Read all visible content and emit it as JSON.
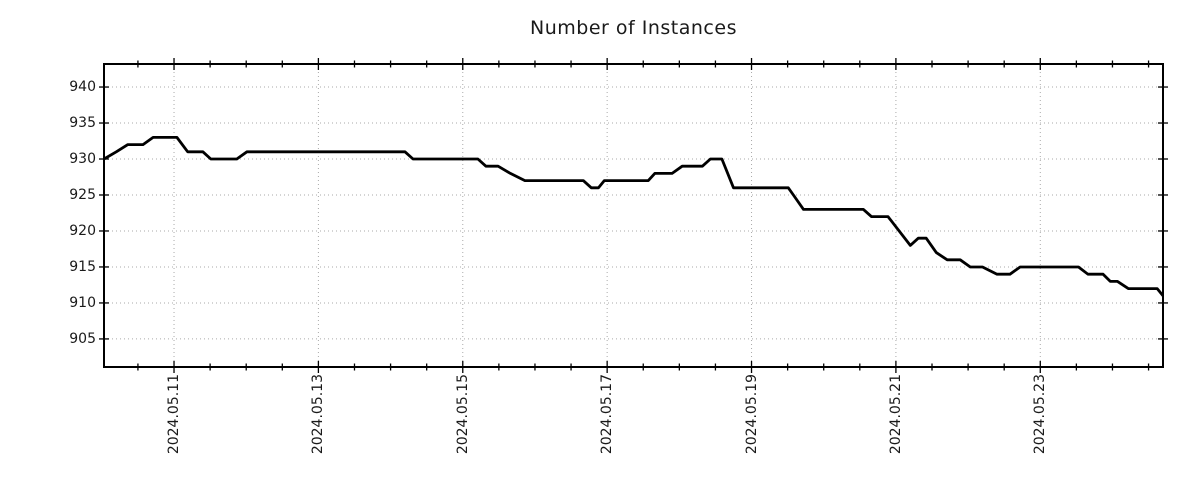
{
  "chart_data": {
    "type": "line",
    "title": "Number of Instances",
    "xlabel": "",
    "ylabel": "",
    "x_unit": "day of month (May 2024)",
    "xlim": [
      10.03,
      24.7
    ],
    "ylim": [
      901.1,
      943.2
    ],
    "grid": "dotted gray at major ticks, horizontal and vertical",
    "legend_position": "none",
    "yticks": [
      {
        "v": 905,
        "label": "905"
      },
      {
        "v": 910,
        "label": "910"
      },
      {
        "v": 915,
        "label": "915"
      },
      {
        "v": 920,
        "label": "920"
      },
      {
        "v": 925,
        "label": "925"
      },
      {
        "v": 930,
        "label": "930"
      },
      {
        "v": 935,
        "label": "935"
      },
      {
        "v": 940,
        "label": "940"
      }
    ],
    "xticks_major": [
      {
        "v": 11,
        "label": "2024.05.11"
      },
      {
        "v": 13,
        "label": "2024.05.13"
      },
      {
        "v": 15,
        "label": "2024.05.15"
      },
      {
        "v": 17,
        "label": "2024.05.17"
      },
      {
        "v": 19,
        "label": "2024.05.19"
      },
      {
        "v": 21,
        "label": "2024.05.21"
      },
      {
        "v": 23,
        "label": "2024.05.23"
      }
    ],
    "xticks_minor": [
      10.5,
      11.5,
      12,
      12.5,
      13.5,
      14,
      14.5,
      15.5,
      16,
      16.5,
      17.5,
      18,
      18.5,
      19.5,
      20,
      20.5,
      21.5,
      22,
      22.5,
      23.5,
      24,
      24.5
    ],
    "series": [
      {
        "name": "Number of Instances",
        "color": "#000000",
        "points": [
          [
            10.03,
            930
          ],
          [
            10.2,
            931
          ],
          [
            10.36,
            932
          ],
          [
            10.57,
            932
          ],
          [
            10.71,
            933
          ],
          [
            11.04,
            933
          ],
          [
            11.19,
            931
          ],
          [
            11.4,
            931
          ],
          [
            11.51,
            930
          ],
          [
            11.87,
            930
          ],
          [
            12.01,
            931
          ],
          [
            14.2,
            931
          ],
          [
            14.31,
            930
          ],
          [
            15.21,
            930
          ],
          [
            15.32,
            929
          ],
          [
            15.49,
            929
          ],
          [
            15.66,
            928
          ],
          [
            15.86,
            927
          ],
          [
            16.67,
            927
          ],
          [
            16.78,
            926
          ],
          [
            16.88,
            926
          ],
          [
            16.96,
            927
          ],
          [
            17.57,
            927
          ],
          [
            17.66,
            928
          ],
          [
            17.9,
            928
          ],
          [
            18.04,
            929
          ],
          [
            18.32,
            929
          ],
          [
            18.43,
            930
          ],
          [
            18.59,
            930
          ],
          [
            18.75,
            926
          ],
          [
            19.51,
            926
          ],
          [
            19.58,
            925
          ],
          [
            19.72,
            923
          ],
          [
            20.55,
            923
          ],
          [
            20.66,
            922
          ],
          [
            20.89,
            922
          ],
          [
            21.2,
            918
          ],
          [
            21.31,
            919
          ],
          [
            21.42,
            919
          ],
          [
            21.56,
            917
          ],
          [
            21.71,
            916
          ],
          [
            21.89,
            916
          ],
          [
            22.03,
            915
          ],
          [
            22.2,
            915
          ],
          [
            22.4,
            914
          ],
          [
            22.58,
            914
          ],
          [
            22.72,
            915
          ],
          [
            23.53,
            915
          ],
          [
            23.66,
            914
          ],
          [
            23.87,
            914
          ],
          [
            23.97,
            913
          ],
          [
            24.07,
            913
          ],
          [
            24.22,
            912
          ],
          [
            24.62,
            912
          ],
          [
            24.7,
            911
          ]
        ]
      }
    ],
    "colors": {
      "line": "#000000",
      "grid": "#aaaaaa",
      "text": "#1a1a1a",
      "frame": "#000000",
      "background": "#ffffff"
    }
  }
}
